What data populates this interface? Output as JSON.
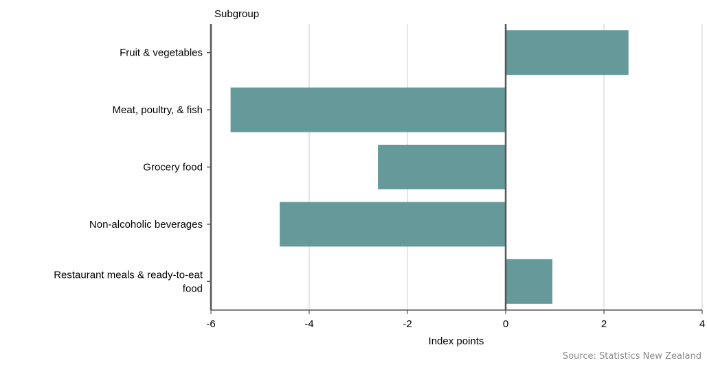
{
  "chart_data": {
    "type": "bar",
    "orientation": "horizontal",
    "categories": [
      "Fruit & vegetables",
      "Meat, poultry, & fish",
      "Grocery food",
      "Non-alcoholic beverages",
      "Restaurant meals & ready-to-eat food"
    ],
    "category_lines": [
      [
        "Fruit & vegetables"
      ],
      [
        "Meat, poultry, & fish"
      ],
      [
        "Grocery food"
      ],
      [
        "Non-alcoholic beverages"
      ],
      [
        "Restaurant meals & ready-to-eat",
        "food"
      ]
    ],
    "values": [
      2.5,
      -5.6,
      -2.6,
      -4.6,
      0.95
    ],
    "title": "",
    "ylabel": "Subgroup",
    "xlabel": "Index points",
    "xlim": [
      -6,
      4
    ],
    "xticks": [
      -6,
      -4,
      -2,
      0,
      2,
      4
    ],
    "xtick_labels": [
      "-6",
      "-4",
      "-2",
      "0",
      "2",
      "4"
    ],
    "grid": "vertical",
    "legend": "none",
    "colors": {
      "bar": "#669999",
      "grid": "#cccccc",
      "axis": "#555555"
    }
  },
  "source": "Source: Statistics New Zealand"
}
